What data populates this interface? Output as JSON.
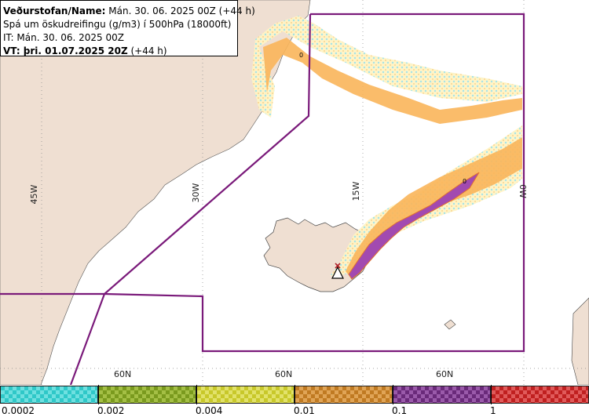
{
  "info_box": {
    "line1_label": "Veðurstofan/Name:",
    "line1_value": "Mán. 30. 06. 2025 00Z (+44 h)",
    "line2": "Spá um öskudreifingu (g/m3) í 500hPa (18000ft)",
    "line3": "IT: Mán. 30. 06. 2025 00Z",
    "line4_label": "VT: þri. 01.07.2025 20Z",
    "line4_value": "(+44 h)"
  },
  "graticule": {
    "lon_labels": [
      "45W",
      "30W",
      "15W",
      "0W"
    ],
    "lat_labels": [
      "60N",
      "60N",
      "60N"
    ],
    "plume_markers": [
      "0",
      "0"
    ]
  },
  "legend": {
    "bins": [
      {
        "color": "#2fc8c8",
        "alt": "#6fe0e0"
      },
      {
        "color": "#7a9a1e",
        "alt": "#a4bf45"
      },
      {
        "color": "#c8c82a",
        "alt": "#e2e26a"
      },
      {
        "color": "#c07a22",
        "alt": "#e0a456"
      },
      {
        "color": "#6a2a7a",
        "alt": "#9a5aaa"
      },
      {
        "color": "#c02020",
        "alt": "#e05a5a"
      }
    ],
    "ticks": [
      "0.0002",
      "0.002",
      "0.004",
      "0.01",
      "0.1",
      "1"
    ]
  },
  "colors": {
    "land": "#efdfd2",
    "sea": "#ffffff",
    "airspace": "#7a1a7a",
    "plume_light": "#fde8a8",
    "plume_orange": "#f9b55a",
    "plume_purple": "#a24ab0",
    "plume_edge": "#e07030"
  }
}
